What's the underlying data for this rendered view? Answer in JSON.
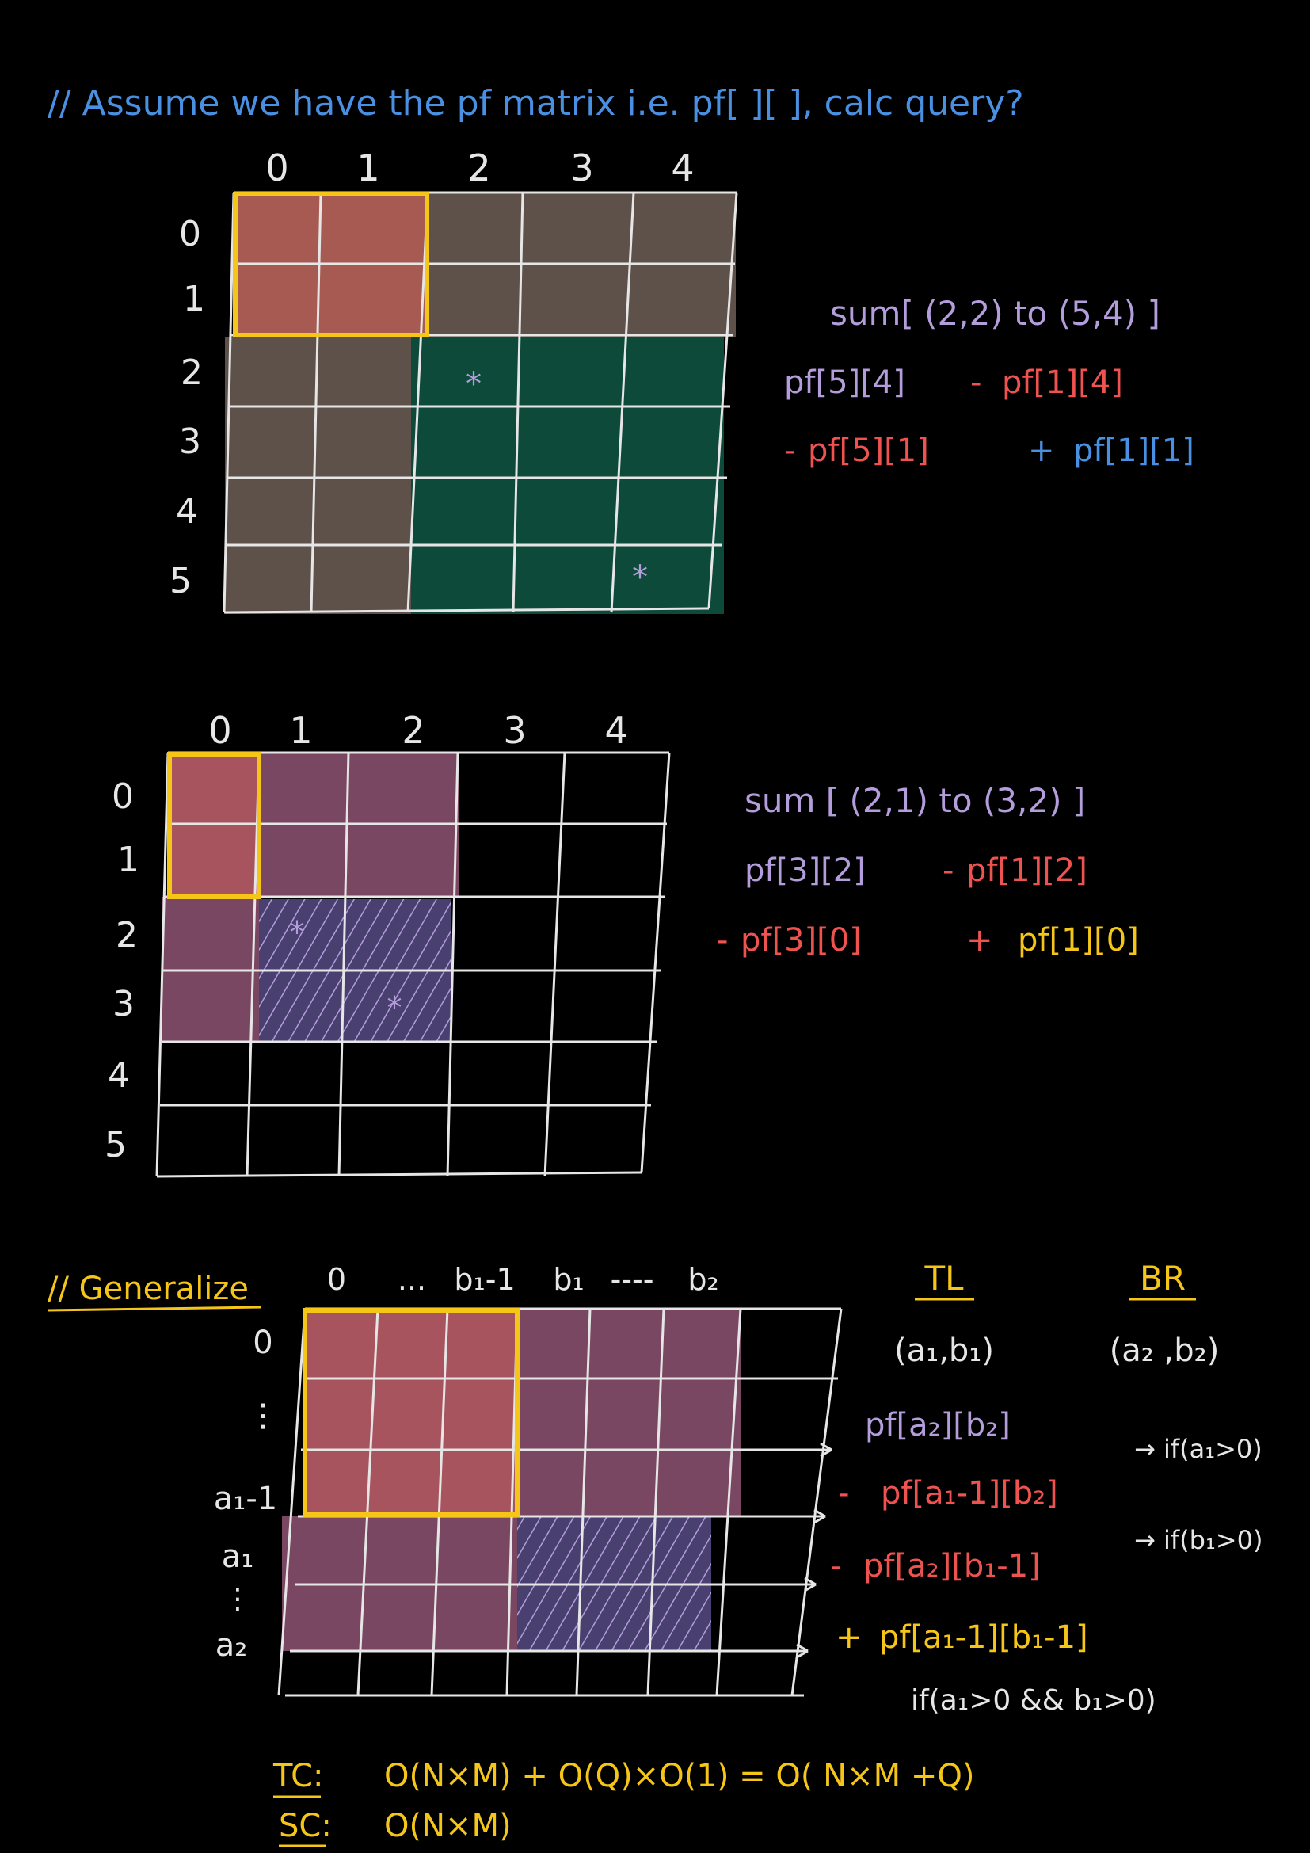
{
  "colors": {
    "background": "#000000",
    "grid_line": "#e6e6e6",
    "heading_blue": "#4a90e2",
    "purple": "#b39ddb",
    "red": "#ef5350",
    "yellow": "#f5c518",
    "fill_salmon": "#a65a52",
    "fill_brown": "#5e514a",
    "fill_green": "#0d4a3a",
    "fill_mauve": "#7a4763",
    "fill_violet": "#4a4070"
  },
  "heading": "// Assume we have the pf matrix i.e. pf[ ][ ], calc query?",
  "section1": {
    "col_labels": [
      "0",
      "1",
      "2",
      "3",
      "4"
    ],
    "row_labels": [
      "0",
      "1",
      "2",
      "3",
      "4",
      "5"
    ],
    "star_glyph": "*",
    "query": "sum[ (2,2) to (5,4) ]",
    "term1": "pf[5][4]",
    "term2_sign": "-",
    "term2": "pf[1][4]",
    "term3_sign": "-",
    "term3": "pf[5][1]",
    "term4_sign": "+",
    "term4": "pf[1][1]"
  },
  "section2": {
    "col_labels": [
      "0",
      "1",
      "2",
      "3",
      "4"
    ],
    "row_labels": [
      "0",
      "1",
      "2",
      "3",
      "4",
      "5"
    ],
    "star_glyph": "*",
    "query": "sum [ (2,1) to (3,2) ]",
    "term1": "pf[3][2]",
    "term2_sign": "-",
    "term2": "pf[1][2]",
    "term3_sign": "-",
    "term3": "pf[3][0]",
    "term4_sign": "+",
    "term4": "pf[1][0]"
  },
  "section3": {
    "title": "// Generalize",
    "col_labels": [
      "0",
      "...",
      "b₁-1",
      "b₁",
      "----",
      "b₂"
    ],
    "row_labels": [
      "0",
      "⋮",
      "a₁-1",
      "a₁",
      "⋮",
      "a₂"
    ],
    "tl_label": "TL",
    "br_label": "BR",
    "tl_value": "(a₁,b₁)",
    "br_value": "(a₂ ,b₂)",
    "term1": "pf[a₂][b₂]",
    "term2_sign": "-",
    "term2": "pf[a₁-1][b₂]",
    "cond2": "→ if(a₁>0)",
    "term3_sign": "-",
    "term3": "pf[a₂][b₁-1]",
    "cond3": "→ if(b₁>0)",
    "term4_sign": "+",
    "term4": "pf[a₁-1][b₁-1]",
    "cond4": "if(a₁>0 && b₁>0)",
    "tc_label": "TC:",
    "tc_value": "O(N×M) + O(Q)×O(1) = O( N×M +Q)",
    "sc_label": "SC:",
    "sc_value": "O(N×M)"
  }
}
